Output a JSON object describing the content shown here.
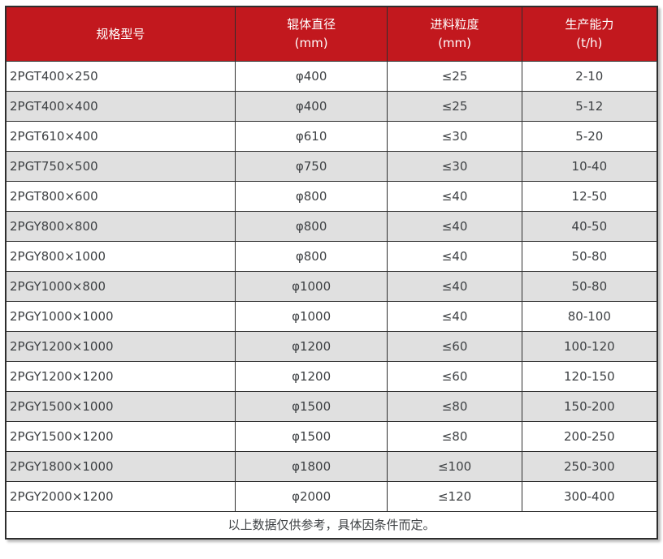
{
  "chart_data": {
    "type": "table",
    "title": "",
    "columns": [
      {
        "label": "规格型号",
        "unit": ""
      },
      {
        "label": "辊体直径",
        "unit": "(mm)"
      },
      {
        "label": "进料粒度",
        "unit": "(mm)"
      },
      {
        "label": "生产能力",
        "unit": "(t/h)"
      }
    ],
    "rows": [
      [
        "2PGT400×250",
        "φ400",
        "≤25",
        "2-10"
      ],
      [
        "2PGT400×400",
        "φ400",
        "≤25",
        "5-12"
      ],
      [
        "2PGT610×400",
        "φ610",
        "≤30",
        "5-20"
      ],
      [
        "2PGT750×500",
        "φ750",
        "≤30",
        "10-40"
      ],
      [
        "2PGT800×600",
        "φ800",
        "≤40",
        "12-50"
      ],
      [
        "2PGY800×800",
        "φ800",
        "≤40",
        "40-50"
      ],
      [
        "2PGY800×1000",
        "φ800",
        "≤40",
        "50-80"
      ],
      [
        "2PGY1000×800",
        "φ1000",
        "≤40",
        "50-80"
      ],
      [
        "2PGY1000×1000",
        "φ1000",
        "≤40",
        "80-100"
      ],
      [
        "2PGY1200×1000",
        "φ1200",
        "≤60",
        "100-120"
      ],
      [
        "2PGY1200×1200",
        "φ1200",
        "≤60",
        "120-150"
      ],
      [
        "2PGY1500×1000",
        "φ1500",
        "≤80",
        "150-200"
      ],
      [
        "2PGY1500×1200",
        "φ1500",
        "≤80",
        "200-250"
      ],
      [
        "2PGY1800×1000",
        "φ1800",
        "≤100",
        "250-300"
      ],
      [
        "2PGY2000×1200",
        "φ2000",
        "≤120",
        "300-400"
      ]
    ],
    "footnote": "以上数据仅供参考，具体因条件而定。"
  },
  "colors": {
    "header_bg": "#c2181e",
    "header_text": "#ffffff",
    "row_alt_bg": "#e0e0e0",
    "row_bg": "#ffffff",
    "border": "#2e2e2e",
    "cell_text": "#3d4043"
  }
}
